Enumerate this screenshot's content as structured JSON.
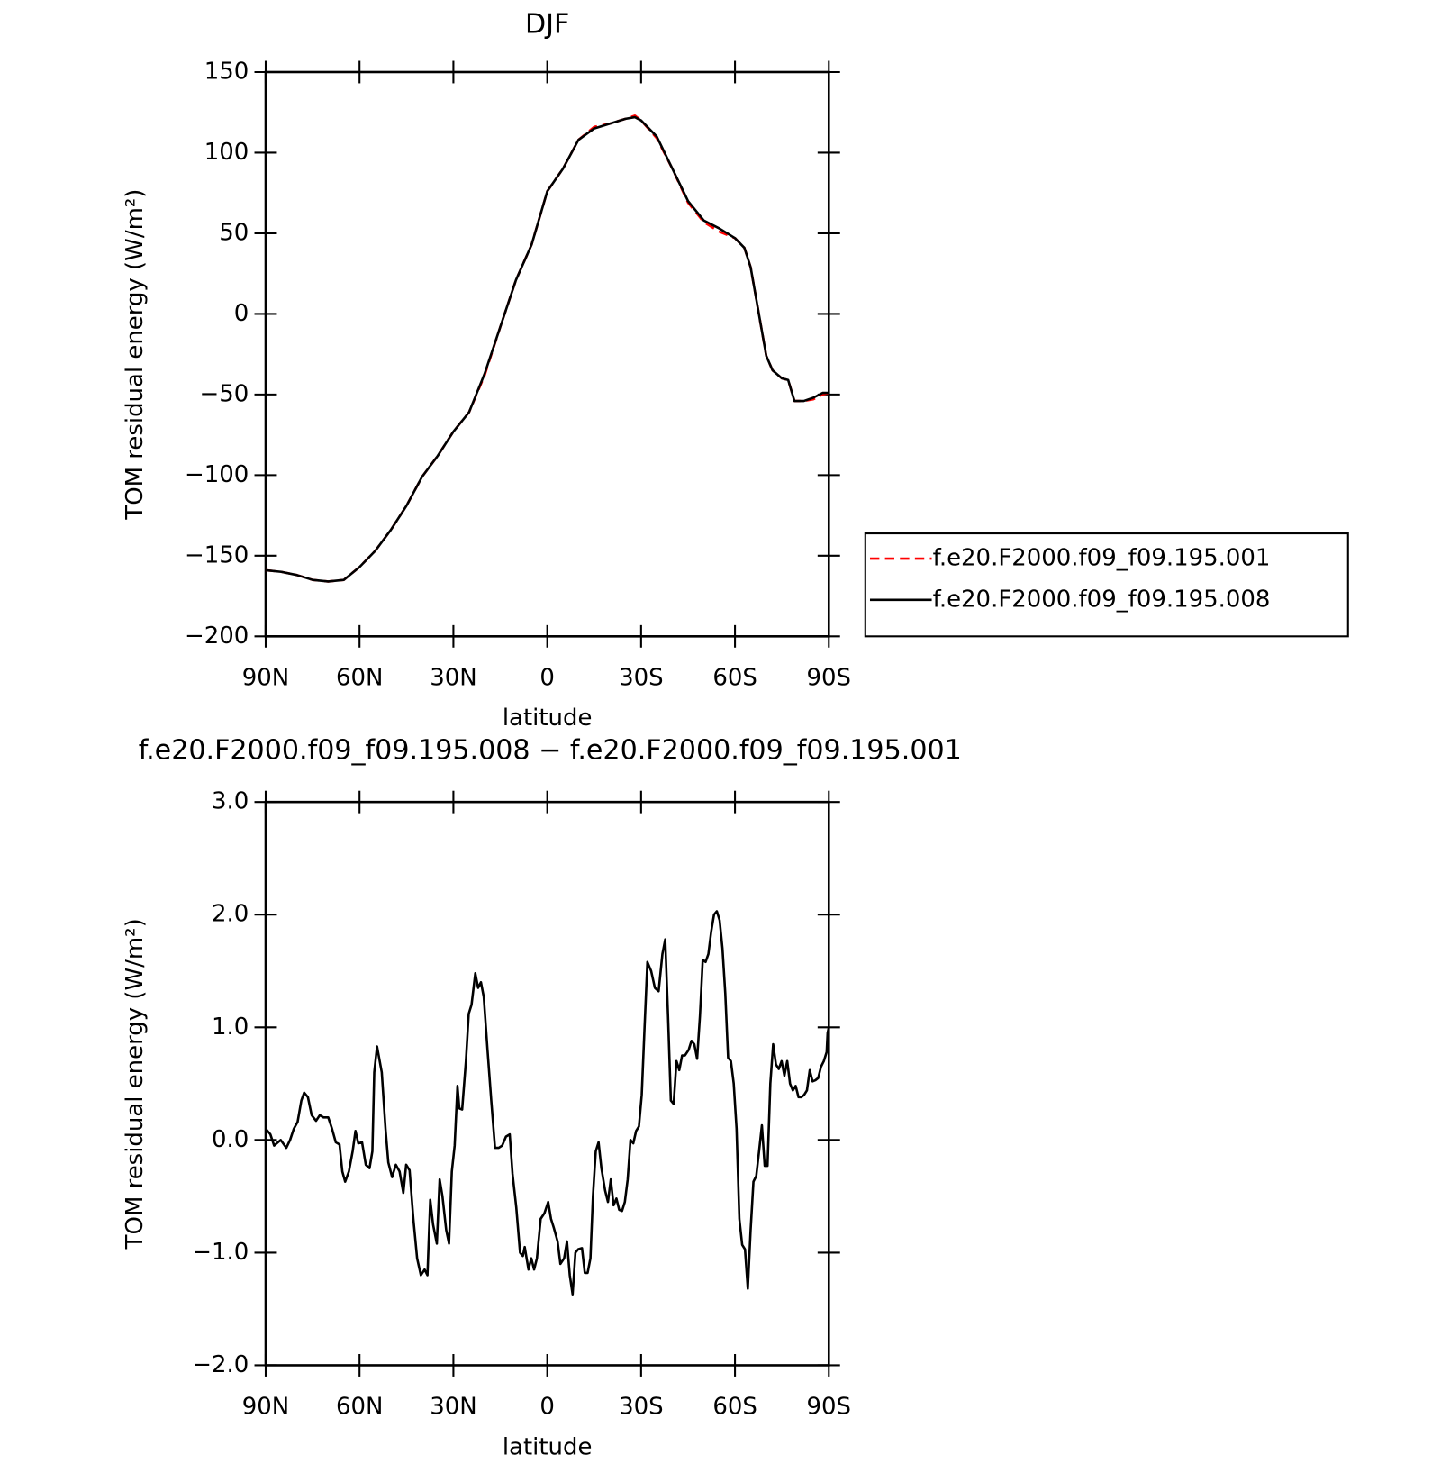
{
  "chart_data": [
    {
      "type": "line",
      "title": "DJF",
      "xlabel": "latitude",
      "ylabel": "TOM residual energy (W/m²)",
      "legend": "right",
      "x": [
        90,
        85,
        80,
        75,
        70,
        65,
        60,
        55,
        50,
        45,
        40,
        35,
        30,
        25,
        20,
        15,
        10,
        5,
        0,
        -5,
        -10,
        -15,
        -20,
        -25,
        -28,
        -30,
        -35,
        -40,
        -45,
        -50,
        -55,
        -60,
        -63,
        -65,
        -70,
        -72,
        -75,
        -77,
        -79,
        -82,
        -85,
        -88,
        -90
      ],
      "series": [
        {
          "name": "f.e20.F2000.f09_f09.195.001",
          "color": "#ff0000",
          "linestyle": "dashed",
          "values": [
            -159,
            -160,
            -162,
            -165,
            -166,
            -165,
            -157,
            -147,
            -134,
            -119,
            -101,
            -88,
            -73,
            -61,
            -38,
            -8,
            21,
            43,
            76,
            90,
            108,
            116,
            118,
            121,
            123,
            120,
            109,
            90,
            69,
            57,
            51,
            47,
            41,
            29,
            -26,
            -35,
            -40,
            -41,
            -54,
            -54,
            -53,
            -50,
            -49
          ]
        },
        {
          "name": "f.e20.F2000.f09_f09.195.008",
          "color": "#000000",
          "linestyle": "solid",
          "values": [
            -159,
            -160,
            -162,
            -165,
            -166,
            -165,
            -157,
            -147,
            -134,
            -119,
            -101,
            -88,
            -73,
            -61,
            -37,
            -8,
            21,
            43,
            76,
            90,
            108,
            115,
            118,
            121,
            122,
            120,
            110,
            90,
            70,
            58,
            53,
            47,
            41,
            29,
            -26,
            -35,
            -40,
            -41,
            -54,
            -54,
            -52,
            -49,
            -49
          ]
        }
      ],
      "xlim": [
        90,
        -90
      ],
      "xticks": [
        {
          "value": 90,
          "label": "90N"
        },
        {
          "value": 60,
          "label": "60N"
        },
        {
          "value": 30,
          "label": "30N"
        },
        0,
        {
          "value": -30,
          "label": "30S"
        },
        {
          "value": -60,
          "label": "60S"
        },
        {
          "value": -90,
          "label": "90S"
        }
      ],
      "ylim": [
        -200,
        150
      ],
      "yticks": [
        {
          "value": -200,
          "label": "−200"
        },
        {
          "value": -150,
          "label": "−150"
        },
        {
          "value": -100,
          "label": "−100"
        },
        {
          "value": -50,
          "label": "−50"
        },
        0,
        50,
        100,
        150
      ]
    },
    {
      "type": "line",
      "title": "f.e20.F2000.f09_f09.195.008 − f.e20.F2000.f09_f09.195.001",
      "xlabel": "latitude",
      "ylabel": "TOM residual energy (W/m²)",
      "x": [
        90,
        88.5,
        87.3,
        85.2,
        83.4,
        82.2,
        81.0,
        79.8,
        78.6,
        77.7,
        76.5,
        75.3,
        73.9,
        72.7,
        71.5,
        70.0,
        68.8,
        67.6,
        66.4,
        65.5,
        64.6,
        63.4,
        62.2,
        61.3,
        60.4,
        59.2,
        58.0,
        56.8,
        55.9,
        55.3,
        54.4,
        52.9,
        51.7,
        50.8,
        49.6,
        48.4,
        47.2,
        46.0,
        45.1,
        44.0,
        42.8,
        41.6,
        40.4,
        39.2,
        38.3,
        37.4,
        36.5,
        35.3,
        34.4,
        33.5,
        32.3,
        31.4,
        30.5,
        29.6,
        28.7,
        28.1,
        27.2,
        26.0,
        25.1,
        24.2,
        23.0,
        22.1,
        21.2,
        20.3,
        19.1,
        17.9,
        16.7,
        15.5,
        14.4,
        13.2,
        12.0,
        11.1,
        9.9,
        8.7,
        7.8,
        7.2,
        6.0,
        5.1,
        4.2,
        3.3,
        2.1,
        0.9,
        -0.3,
        -1.2,
        -2.1,
        -3.3,
        -4.2,
        -5.4,
        -6.3,
        -7.2,
        -8.1,
        -9.0,
        -9.9,
        -11.1,
        -12.0,
        -12.9,
        -13.8,
        -14.6,
        -15.5,
        -16.4,
        -17.3,
        -18.5,
        -19.4,
        -20.3,
        -21.2,
        -22.1,
        -23.0,
        -23.9,
        -24.8,
        -25.7,
        -26.6,
        -27.5,
        -28.4,
        -29.3,
        -30.2,
        -31.1,
        -32.0,
        -33.2,
        -34.4,
        -35.6,
        -36.8,
        -37.7,
        -38.6,
        -39.5,
        -40.4,
        -41.3,
        -42.2,
        -43.1,
        -44.0,
        -45.2,
        -46.1,
        -47.0,
        -47.9,
        -48.8,
        -49.7,
        -50.6,
        -51.5,
        -52.4,
        -53.3,
        -54.2,
        -55.1,
        -56.0,
        -56.9,
        -57.8,
        -58.7,
        -59.6,
        -60.5,
        -61.4,
        -62.3,
        -63.2,
        -64.1,
        -65.0,
        -65.9,
        -66.8,
        -67.7,
        -68.6,
        -69.5,
        -70.4,
        -71.3,
        -72.2,
        -73.1,
        -74.0,
        -74.9,
        -75.8,
        -76.7,
        -77.6,
        -78.5,
        -79.4,
        -80.3,
        -81.2,
        -82.1,
        -83.0,
        -83.9,
        -84.8,
        -85.7,
        -86.6,
        -87.5,
        -88.4,
        -89.3,
        -89.6,
        -90
      ],
      "series": [
        {
          "color": "#000000",
          "linestyle": "solid",
          "values": [
            0.1,
            0.05,
            -0.05,
            0.0,
            -0.07,
            0.0,
            0.1,
            0.16,
            0.35,
            0.42,
            0.38,
            0.22,
            0.17,
            0.22,
            0.2,
            0.2,
            0.1,
            -0.02,
            -0.04,
            -0.28,
            -0.37,
            -0.28,
            -0.1,
            0.08,
            -0.03,
            -0.02,
            -0.22,
            -0.25,
            -0.1,
            0.6,
            0.83,
            0.6,
            0.1,
            -0.2,
            -0.33,
            -0.22,
            -0.28,
            -0.47,
            -0.22,
            -0.27,
            -0.7,
            -1.05,
            -1.2,
            -1.15,
            -1.2,
            -0.53,
            -0.75,
            -0.92,
            -0.35,
            -0.5,
            -0.8,
            -0.92,
            -0.28,
            -0.05,
            0.48,
            0.28,
            0.27,
            0.7,
            1.12,
            1.2,
            1.48,
            1.35,
            1.4,
            1.27,
            0.8,
            0.35,
            -0.07,
            -0.07,
            -0.05,
            0.03,
            0.05,
            -0.3,
            -0.6,
            -1.0,
            -1.03,
            -0.95,
            -1.15,
            -1.05,
            -1.15,
            -1.05,
            -0.7,
            -0.65,
            -0.55,
            -0.7,
            -0.78,
            -0.9,
            -1.1,
            -1.05,
            -0.9,
            -1.2,
            -1.37,
            -1.0,
            -0.97,
            -0.96,
            -1.18,
            -1.18,
            -1.05,
            -0.5,
            -0.1,
            -0.02,
            -0.25,
            -0.45,
            -0.55,
            -0.35,
            -0.58,
            -0.52,
            -0.62,
            -0.63,
            -0.55,
            -0.35,
            0.0,
            -0.03,
            0.08,
            0.12,
            0.4,
            1.0,
            1.58,
            1.5,
            1.35,
            1.32,
            1.65,
            1.78,
            1.1,
            0.35,
            0.32,
            0.7,
            0.62,
            0.75,
            0.75,
            0.8,
            0.88,
            0.85,
            0.72,
            1.1,
            1.6,
            1.58,
            1.65,
            1.85,
            2.0,
            2.03,
            1.95,
            1.7,
            1.3,
            0.73,
            0.7,
            0.5,
            0.1,
            -0.7,
            -0.93,
            -0.97,
            -1.32,
            -0.8,
            -0.37,
            -0.32,
            -0.1,
            0.13,
            -0.23,
            -0.23,
            0.5,
            0.85,
            0.67,
            0.63,
            0.7,
            0.57,
            0.7,
            0.5,
            0.44,
            0.48,
            0.38,
            0.38,
            0.4,
            0.44,
            0.62,
            0.52,
            0.53,
            0.55,
            0.65,
            0.7,
            0.78,
            0.95,
            1.0
          ]
        }
      ],
      "xlim": [
        90,
        -90
      ],
      "xticks": [
        {
          "value": 90,
          "label": "90N"
        },
        {
          "value": 60,
          "label": "60N"
        },
        {
          "value": 30,
          "label": "30N"
        },
        0,
        {
          "value": -30,
          "label": "30S"
        },
        {
          "value": -60,
          "label": "60S"
        },
        {
          "value": -90,
          "label": "90S"
        }
      ],
      "ylim": [
        -2,
        3
      ],
      "yticks": [
        {
          "value": -2,
          "label": "−2.0"
        },
        {
          "value": -1,
          "label": "−1.0"
        },
        {
          "value": 0,
          "label": "0.0"
        },
        {
          "value": 1,
          "label": "1.0"
        },
        {
          "value": 2,
          "label": "2.0"
        },
        {
          "value": 3,
          "label": "3.0"
        }
      ]
    }
  ]
}
